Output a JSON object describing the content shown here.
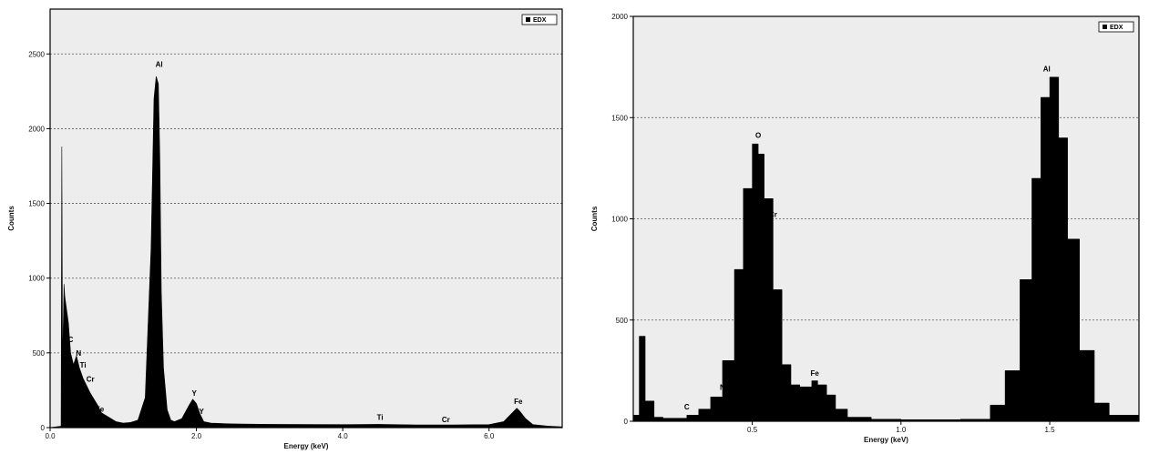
{
  "chart_data": [
    {
      "type": "area",
      "xlabel": "Energy (keV)",
      "ylabel": "Counts",
      "xlim": [
        0,
        7.0
      ],
      "ylim": [
        0,
        2800
      ],
      "x_ticks": [
        0.0,
        2.0,
        4.0,
        6.0
      ],
      "x_tick_labels": [
        "0.0",
        "2.0",
        "4.0",
        "6.0"
      ],
      "y_ticks": [
        0,
        500,
        1000,
        1500,
        2000,
        2500
      ],
      "y_tick_labels": [
        "0",
        "500",
        "1000",
        "1500",
        "2000",
        "2500"
      ],
      "grid": true,
      "legend": {
        "position": "top-right",
        "entries": [
          "EDX"
        ]
      },
      "series": [
        {
          "name": "EDX",
          "x": [
            0.0,
            0.15,
            0.16,
            0.17,
            0.19,
            0.2,
            0.25,
            0.28,
            0.32,
            0.36,
            0.4,
            0.45,
            0.5,
            0.55,
            0.6,
            0.65,
            0.7,
            0.8,
            0.9,
            1.0,
            1.1,
            1.2,
            1.3,
            1.38,
            1.42,
            1.45,
            1.48,
            1.5,
            1.52,
            1.55,
            1.6,
            1.65,
            1.7,
            1.8,
            1.9,
            1.95,
            2.0,
            2.05,
            2.1,
            2.2,
            2.5,
            3.0,
            4.0,
            4.5,
            5.0,
            5.5,
            6.0,
            6.2,
            6.3,
            6.38,
            6.42,
            6.5,
            6.6,
            6.8,
            7.0
          ],
          "y": [
            0,
            10,
            1880,
            400,
            960,
            880,
            700,
            500,
            420,
            480,
            400,
            330,
            280,
            230,
            190,
            150,
            100,
            70,
            40,
            30,
            35,
            50,
            200,
            1200,
            2200,
            2350,
            2300,
            1800,
            900,
            400,
            120,
            50,
            40,
            60,
            150,
            190,
            160,
            90,
            40,
            30,
            25,
            22,
            20,
            22,
            18,
            18,
            20,
            40,
            90,
            130,
            110,
            60,
            20,
            10,
            5
          ]
        }
      ],
      "annotations": [
        {
          "text": "C",
          "x": 0.28,
          "y": 560
        },
        {
          "text": "N",
          "x": 0.39,
          "y": 470
        },
        {
          "text": "Ti",
          "x": 0.45,
          "y": 390
        },
        {
          "text": "Cr",
          "x": 0.55,
          "y": 295
        },
        {
          "text": "Fe",
          "x": 0.68,
          "y": 95
        },
        {
          "text": "Al",
          "x": 1.49,
          "y": 2400
        },
        {
          "text": "Y",
          "x": 1.97,
          "y": 200
        },
        {
          "text": "Y",
          "x": 2.07,
          "y": 80
        },
        {
          "text": "Ti",
          "x": 4.51,
          "y": 40
        },
        {
          "text": "Cr",
          "x": 5.41,
          "y": 25
        },
        {
          "text": "Fe",
          "x": 6.4,
          "y": 145
        }
      ]
    },
    {
      "type": "bar",
      "xlabel": "Energy (keV)",
      "ylabel": "Counts",
      "xlim": [
        0.1,
        1.8
      ],
      "ylim": [
        0,
        2000
      ],
      "x_ticks": [
        0.5,
        1.0,
        1.5
      ],
      "x_tick_labels": [
        "0.5",
        "1.0",
        "1.5"
      ],
      "y_ticks": [
        0,
        500,
        1000,
        1500,
        2000
      ],
      "y_tick_labels": [
        "0",
        "500",
        "1000",
        "1500",
        "2000"
      ],
      "grid": true,
      "legend": {
        "position": "top-right",
        "entries": [
          "EDX"
        ]
      },
      "series": [
        {
          "name": "EDX",
          "x": [
            0.1,
            0.12,
            0.14,
            0.17,
            0.2,
            0.25,
            0.28,
            0.32,
            0.36,
            0.4,
            0.44,
            0.47,
            0.5,
            0.52,
            0.54,
            0.57,
            0.6,
            0.63,
            0.66,
            0.7,
            0.72,
            0.75,
            0.78,
            0.82,
            0.9,
            1.0,
            1.1,
            1.2,
            1.3,
            1.35,
            1.4,
            1.44,
            1.47,
            1.5,
            1.53,
            1.56,
            1.6,
            1.65,
            1.7,
            1.8
          ],
          "y": [
            30,
            420,
            100,
            20,
            15,
            15,
            30,
            60,
            120,
            300,
            750,
            1150,
            1370,
            1320,
            1100,
            650,
            280,
            180,
            170,
            200,
            180,
            130,
            60,
            20,
            10,
            8,
            8,
            10,
            80,
            250,
            700,
            1200,
            1600,
            1700,
            1400,
            900,
            350,
            90,
            30,
            15
          ]
        }
      ],
      "annotations": [
        {
          "text": "O",
          "x": 0.52,
          "y": 1390
        },
        {
          "text": "Cr",
          "x": 0.57,
          "y": 1000
        },
        {
          "text": "C",
          "x": 0.28,
          "y": 50
        },
        {
          "text": "N",
          "x": 0.4,
          "y": 145
        },
        {
          "text": "Cr",
          "x": 0.6,
          "y": 160
        },
        {
          "text": "Fe",
          "x": 0.71,
          "y": 215
        },
        {
          "text": "Fe",
          "x": 0.71,
          "y": 55
        },
        {
          "text": "Al",
          "x": 1.49,
          "y": 1720
        }
      ]
    }
  ]
}
